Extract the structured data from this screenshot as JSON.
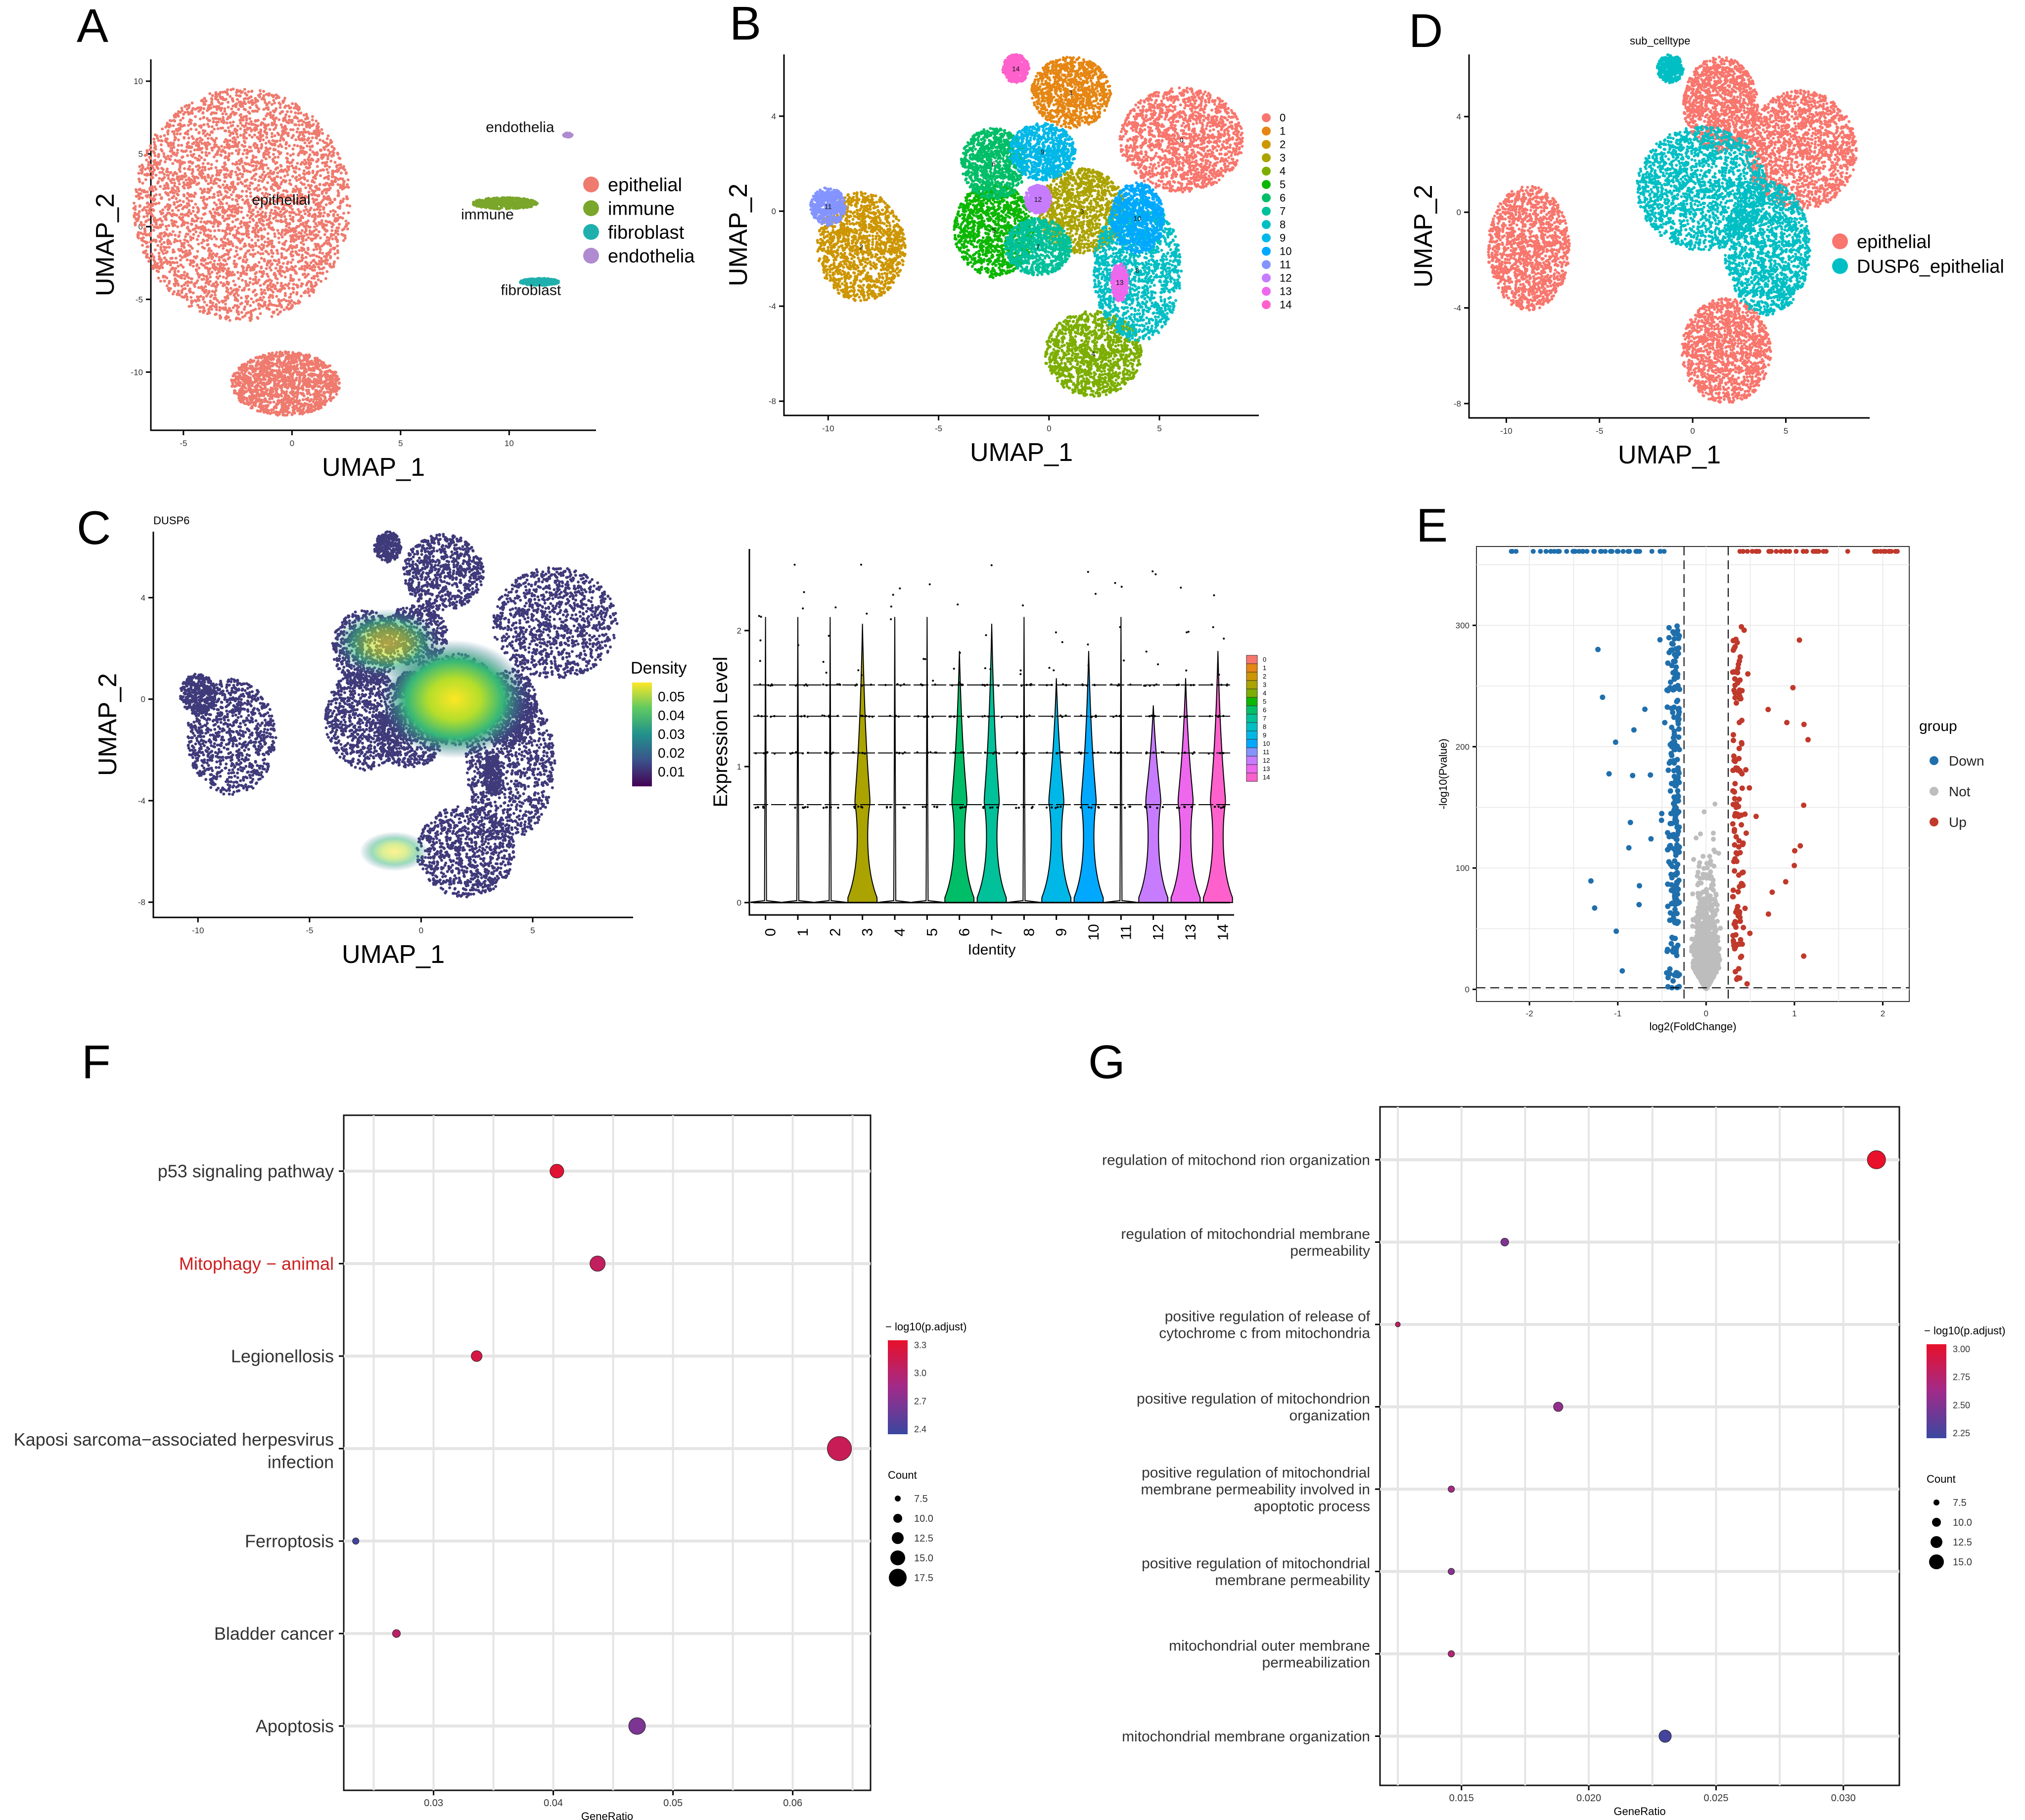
{
  "panels": {
    "A": {
      "letter": "A"
    },
    "B": {
      "letter": "B"
    },
    "C": {
      "letter": "C",
      "plot_title": "DUSP6"
    },
    "D": {
      "letter": "D",
      "plot_title": "sub_celltype"
    },
    "E": {
      "letter": "E"
    },
    "F": {
      "letter": "F"
    },
    "G": {
      "letter": "G"
    }
  },
  "chart_data": [
    {
      "panel": "A",
      "type": "scatter",
      "subtype": "umap",
      "xlabel": "UMAP_1",
      "ylabel": "UMAP_2",
      "xlim": [
        -6.5,
        14
      ],
      "ylim": [
        -14,
        11.5
      ],
      "xticks": [
        -5,
        0,
        5,
        10
      ],
      "yticks": [
        -10,
        -5,
        0,
        5,
        10
      ],
      "legend": [
        {
          "label": "epithelial",
          "color": "#ef7a6e"
        },
        {
          "label": "immune",
          "color": "#7aa62a"
        },
        {
          "label": "fibroblast",
          "color": "#1fb0ad"
        },
        {
          "label": "endothelia",
          "color": "#b08bd0"
        }
      ],
      "cluster_labels": [
        {
          "text": "epithelial",
          "x": -0.5,
          "y": 1.5
        },
        {
          "text": "endothelia",
          "x": 10.5,
          "y": 6.5
        },
        {
          "text": "immune",
          "x": 9,
          "y": 0.5
        },
        {
          "text": "fibroblast",
          "x": 11,
          "y": -4.7
        }
      ],
      "clusters": [
        {
          "color": "#ef7a6e",
          "cx": -2.3,
          "cy": 1.5,
          "rx": 5,
          "ry": 8
        },
        {
          "color": "#ef7a6e",
          "cx": -0.3,
          "cy": -10.8,
          "rx": 2.5,
          "ry": 2.2
        },
        {
          "color": "#7aa62a",
          "cx": 9.8,
          "cy": 1.6,
          "rx": 1.5,
          "ry": 0.4
        },
        {
          "color": "#1fb0ad",
          "cx": 11.4,
          "cy": -3.8,
          "rx": 0.9,
          "ry": 0.25
        },
        {
          "color": "#b08bd0",
          "cx": 12.7,
          "cy": 6.3,
          "rx": 0.2,
          "ry": 0.15
        }
      ]
    },
    {
      "panel": "B",
      "type": "scatter",
      "subtype": "umap",
      "xlabel": "UMAP_1",
      "ylabel": "UMAP_2",
      "xlim": [
        -12,
        9.5
      ],
      "ylim": [
        -8.6,
        6.6
      ],
      "xticks": [
        -10,
        -5,
        0,
        5
      ],
      "yticks": [
        -8,
        -4,
        0,
        4
      ],
      "legend": [
        {
          "label": "0",
          "color": "#f8766d"
        },
        {
          "label": "1",
          "color": "#e68613"
        },
        {
          "label": "2",
          "color": "#cd9600"
        },
        {
          "label": "3",
          "color": "#aba300"
        },
        {
          "label": "4",
          "color": "#7cae00"
        },
        {
          "label": "5",
          "color": "#0cb702"
        },
        {
          "label": "6",
          "color": "#00be67"
        },
        {
          "label": "7",
          "color": "#00c19a"
        },
        {
          "label": "8",
          "color": "#00bfc4"
        },
        {
          "label": "9",
          "color": "#00b8e7"
        },
        {
          "label": "10",
          "color": "#00a9ff"
        },
        {
          "label": "11",
          "color": "#8494ff"
        },
        {
          "label": "12",
          "color": "#c77cff"
        },
        {
          "label": "13",
          "color": "#ed68ed"
        },
        {
          "label": "14",
          "color": "#ff61cc"
        }
      ],
      "clusters": [
        {
          "label": "0",
          "cx": 6,
          "cy": 3,
          "rx": 2.8,
          "ry": 2.2
        },
        {
          "label": "1",
          "cx": 1,
          "cy": 5,
          "rx": 1.8,
          "ry": 1.5
        },
        {
          "label": "2",
          "cx": -8.5,
          "cy": -1.5,
          "rx": 2,
          "ry": 2.3
        },
        {
          "label": "3",
          "cx": 1.5,
          "cy": 0,
          "rx": 2,
          "ry": 1.8
        },
        {
          "label": "4",
          "cx": 2,
          "cy": -6,
          "rx": 2.2,
          "ry": 1.8
        },
        {
          "label": "5",
          "cx": -2.5,
          "cy": -0.8,
          "rx": 1.8,
          "ry": 2
        },
        {
          "label": "6",
          "cx": -2.5,
          "cy": 2,
          "rx": 1.5,
          "ry": 1.5
        },
        {
          "label": "7",
          "cx": -0.5,
          "cy": -1.5,
          "rx": 1.5,
          "ry": 1.2
        },
        {
          "label": "8",
          "cx": 4,
          "cy": -2.5,
          "rx": 2,
          "ry": 3
        },
        {
          "label": "9",
          "cx": -0.3,
          "cy": 2.5,
          "rx": 1.5,
          "ry": 1.2
        },
        {
          "label": "10",
          "cx": 4,
          "cy": -0.3,
          "rx": 1.2,
          "ry": 1.5
        },
        {
          "label": "11",
          "cx": -10,
          "cy": 0.2,
          "rx": 0.8,
          "ry": 0.8
        },
        {
          "label": "12",
          "cx": -0.5,
          "cy": 0.5,
          "rx": 0.6,
          "ry": 0.6
        },
        {
          "label": "13",
          "cx": 3.2,
          "cy": -3,
          "rx": 0.4,
          "ry": 0.8
        },
        {
          "label": "14",
          "cx": -1.5,
          "cy": 6,
          "rx": 0.6,
          "ry": 0.6
        }
      ]
    },
    {
      "panel": "D",
      "type": "scatter",
      "subtype": "umap",
      "xlabel": "UMAP_1",
      "ylabel": "UMAP_2",
      "xlim": [
        -12,
        9.5
      ],
      "ylim": [
        -8.6,
        6.6
      ],
      "xticks": [
        -10,
        -5,
        0,
        5
      ],
      "yticks": [
        -8,
        -4,
        0,
        4
      ],
      "legend": [
        {
          "label": "epithelial",
          "color": "#f8766d"
        },
        {
          "label": "DUSP6_epithelial",
          "color": "#00bfc4"
        }
      ],
      "clusters": [
        {
          "color": "#f8766d",
          "cx": 5.8,
          "cy": 2.6,
          "rx": 3,
          "ry": 2.5
        },
        {
          "color": "#f8766d",
          "cx": -8.8,
          "cy": -1.5,
          "rx": 2.2,
          "ry": 2.6
        },
        {
          "color": "#f8766d",
          "cx": 1.5,
          "cy": 4.5,
          "rx": 2,
          "ry": 2
        },
        {
          "color": "#f8766d",
          "cx": 1.8,
          "cy": -5.8,
          "rx": 2.4,
          "ry": 2.2
        },
        {
          "color": "#00bfc4",
          "cx": 0.5,
          "cy": 1,
          "rx": 3.5,
          "ry": 2.6
        },
        {
          "color": "#00bfc4",
          "cx": 4,
          "cy": -1.5,
          "rx": 2.3,
          "ry": 2.8
        },
        {
          "color": "#00bfc4",
          "cx": -1.2,
          "cy": 6,
          "rx": 0.7,
          "ry": 0.6
        }
      ]
    },
    {
      "panel": "C-umap",
      "type": "scatter",
      "subtype": "density",
      "title": "DUSP6",
      "xlabel": "UMAP_1",
      "ylabel": "UMAP_2",
      "xlim": [
        -12,
        9.5
      ],
      "ylim": [
        -8.6,
        6.6
      ],
      "xticks": [
        -10,
        -5,
        0,
        5
      ],
      "yticks": [
        -8,
        -4,
        0,
        4
      ],
      "legend_title": "Density",
      "legend_ticks": [
        "0.05",
        "0.04",
        "0.03",
        "0.02",
        "0.01"
      ],
      "legend_colors": [
        "#fde725",
        "#5ec962",
        "#21918c",
        "#3b528b",
        "#440154"
      ],
      "hotspot": {
        "x": 1.5,
        "y": 0,
        "value": 0.055
      }
    },
    {
      "panel": "C-violin",
      "type": "violin",
      "xlabel": "Identity",
      "ylabel": "Expression Level",
      "categories": [
        "0",
        "1",
        "2",
        "3",
        "4",
        "5",
        "6",
        "7",
        "8",
        "9",
        "10",
        "11",
        "12",
        "13",
        "14"
      ],
      "ylim": [
        0,
        2.6
      ],
      "yticks": [
        0,
        1,
        2
      ],
      "expressing": [
        false,
        false,
        false,
        true,
        false,
        false,
        true,
        true,
        false,
        true,
        true,
        false,
        true,
        true,
        true
      ],
      "legend": [
        "0",
        "1",
        "2",
        "3",
        "4",
        "5",
        "6",
        "7",
        "8",
        "9",
        "10",
        "11",
        "12",
        "13",
        "14"
      ]
    },
    {
      "panel": "E",
      "type": "scatter",
      "subtype": "volcano",
      "xlabel": "log2(FoldChange)",
      "ylabel": "-log10(Pvalue)",
      "xlim": [
        -2.6,
        2.3
      ],
      "ylim": [
        -10,
        365
      ],
      "xticks": [
        -2,
        -1,
        0,
        1,
        2
      ],
      "yticks": [
        0,
        100,
        200,
        300
      ],
      "thresholds": {
        "logfc": 0.25,
        "neglog10p": 1.3
      },
      "legend_title": "group",
      "groups": [
        {
          "label": "Down",
          "color": "#1f6fad"
        },
        {
          "label": "Not",
          "color": "#bdbdbd"
        },
        {
          "label": "Up",
          "color": "#c0392b"
        }
      ]
    },
    {
      "panel": "F",
      "type": "scatter",
      "subtype": "dotplot",
      "xlabel": "GeneRatio",
      "xlim": [
        0.0225,
        0.0665
      ],
      "xticks": [
        0.03,
        0.04,
        0.05,
        0.06
      ],
      "xticklabels": [
        "0.03",
        "0.04",
        "0.05",
        "0.06"
      ],
      "terms": [
        "p53 signaling pathway",
        "Mitophagy − animal",
        "Legionellosis",
        "Kaposi sarcoma−associated herpesvirus",
        "Ferroptosis",
        "Bladder cancer",
        "Apoptosis"
      ],
      "term_second_lines": [
        "",
        "",
        "",
        "infection",
        "",
        "",
        ""
      ],
      "highlight_term": "Mitophagy − animal",
      "gene_ratio": [
        0.0403,
        0.0437,
        0.0336,
        0.0639,
        0.0235,
        0.0269,
        0.047
      ],
      "count": [
        12,
        13,
        10,
        19,
        7,
        8,
        14
      ],
      "neglog10_padj": [
        3.3,
        3.05,
        3.2,
        3.1,
        2.3,
        3.0,
        2.6
      ],
      "color_legend": {
        "title": "− log10(p.adjust)",
        "ticks": [
          "3.3",
          "3.0",
          "2.7",
          "2.4"
        ],
        "range": [
          2.25,
          3.35
        ],
        "low": "#3a47a0",
        "high": "#e8102a"
      },
      "size_legend": {
        "title": "Count",
        "values": [
          "7.5",
          "10.0",
          "12.5",
          "15.0",
          "17.5"
        ]
      }
    },
    {
      "panel": "G",
      "type": "scatter",
      "subtype": "dotplot",
      "xlabel": "GeneRatio",
      "xlim": [
        0.0118,
        0.0322
      ],
      "xticks": [
        0.015,
        0.02,
        0.025,
        0.03
      ],
      "xticklabels": [
        "0.015",
        "0.020",
        "0.025",
        "0.030"
      ],
      "terms": [
        [
          "regulation of mitochond rion organization"
        ],
        [
          "regulation of mitochondrial membrane",
          "permeability"
        ],
        [
          "positive regulation of release of",
          "cytochrome c from mitochondria"
        ],
        [
          "positive regulation of mitochondrion",
          "organization"
        ],
        [
          "positive regulation of mitochondrial",
          "membrane permeability involved in",
          "apoptotic process"
        ],
        [
          "positive regulation of mitochondrial",
          "membrane permeability"
        ],
        [
          "mitochondrial outer membrane",
          "permeabilization"
        ],
        [
          "mitochondrial membrane organization"
        ]
      ],
      "gene_ratio": [
        0.0313,
        0.0167,
        0.0125,
        0.0188,
        0.0146,
        0.0146,
        0.0146,
        0.023
      ],
      "count": [
        15,
        8,
        6,
        9,
        7,
        7,
        7,
        11
      ],
      "neglog10_padj": [
        3.15,
        2.45,
        2.85,
        2.55,
        2.65,
        2.5,
        2.75,
        2.15
      ],
      "color_legend": {
        "title": "− log10(p.adjust)",
        "ticks": [
          "3.00",
          "2.75",
          "2.50",
          "2.25"
        ],
        "range": [
          2.1,
          3.15
        ],
        "low": "#3a47a0",
        "high": "#e8102a"
      },
      "size_legend": {
        "title": "Count",
        "values": [
          "7.5",
          "10.0",
          "12.5",
          "15.0"
        ]
      }
    }
  ]
}
